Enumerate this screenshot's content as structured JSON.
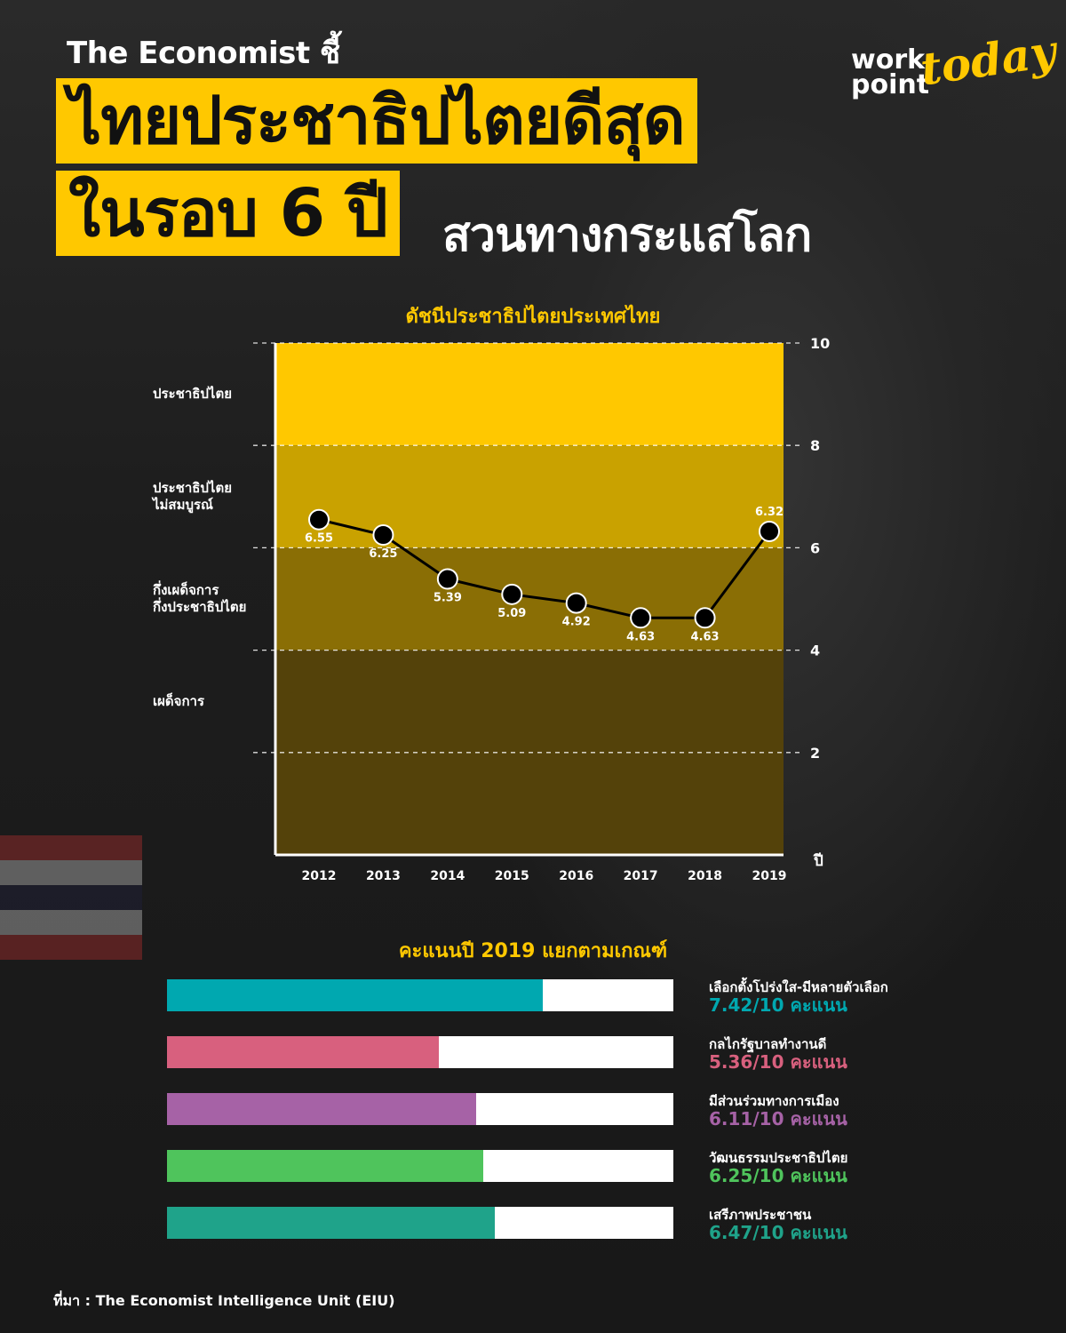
{
  "header": {
    "eyebrow": "The Economist ชี้",
    "headline_line1": "ไทยประชาธิปไตยดีสุด",
    "headline_line2": "ในรอบ 6 ปี",
    "subheadline": "สวนทางกระแสโลก"
  },
  "logo": {
    "line1": "work",
    "line2": "point",
    "accent": "today"
  },
  "zones": [
    {
      "label": "ประชาธิปไตย",
      "range": [
        8,
        10
      ],
      "color": "#ffc800"
    },
    {
      "label": "ประชาธิปไตย\nไม่สมบูรณ์",
      "range": [
        6,
        8
      ],
      "color": "#c9a200"
    },
    {
      "label": "กึ่งเผด็จการ\nกึ่งประชาธิปไตย",
      "range": [
        4,
        6
      ],
      "color": "#8a6e05"
    },
    {
      "label": "เผด็จการ",
      "range": [
        0,
        4
      ],
      "color": "#54420a"
    }
  ],
  "chart_data": [
    {
      "type": "line",
      "title": "ดัชนีประชาธิปไตยประเทศไทย",
      "xlabel": "ปี",
      "x": [
        "2012",
        "2013",
        "2014",
        "2015",
        "2016",
        "2017",
        "2018",
        "2019"
      ],
      "values": [
        6.55,
        6.25,
        5.39,
        5.09,
        4.92,
        4.63,
        4.63,
        6.32
      ],
      "ylim": [
        0,
        10
      ],
      "yticks": [
        2,
        4,
        6,
        8,
        10
      ],
      "grid": true
    },
    {
      "type": "bar",
      "title": "คะแนนปี 2019 แยกตามเกณฑ์",
      "categories": [
        "เลือกตั้งโปร่งใส-มีหลายตัวเลือก",
        "กลไกรัฐบาลทำงานดี",
        "มีส่วนร่วมทางการเมือง",
        "วัฒนธรรมประชาธิปไตย",
        "เสรีภาพประชาชน"
      ],
      "values": [
        7.42,
        5.36,
        6.11,
        6.25,
        6.47
      ],
      "score_labels": [
        "7.42/10 คะแนน",
        "5.36/10 คะแนน",
        "6.11/10 คะแนน",
        "6.25/10 คะแนน",
        "6.47/10 คะแนน"
      ],
      "colors": [
        "#00a8b0",
        "#d8607e",
        "#a662a6",
        "#4fc45c",
        "#1fa38a"
      ],
      "ylim": [
        0,
        10
      ]
    }
  ],
  "source": "ที่มา : The Economist Intelligence Unit (EIU)"
}
